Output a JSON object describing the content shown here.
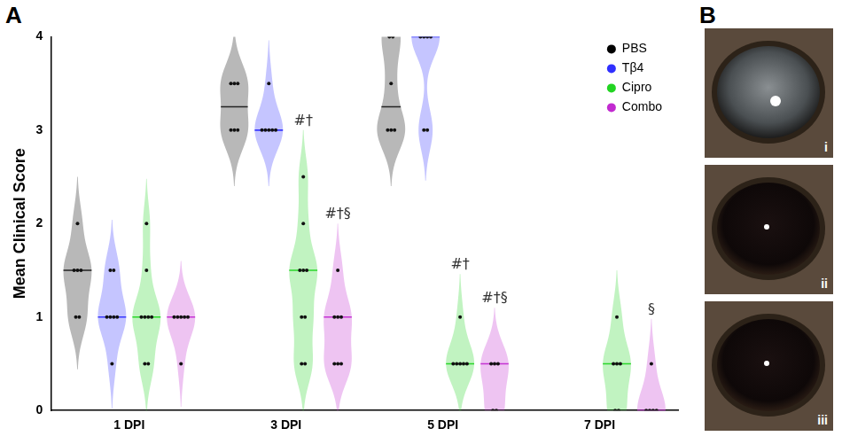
{
  "chart_data": {
    "type": "violin",
    "panel_label": "A",
    "y_label": "Mean Clinical Score",
    "categories": [
      "1 DPI",
      "3 DPI",
      "5 DPI",
      "7 DPI"
    ],
    "series": [
      {
        "name": "PBS",
        "color": "#000000",
        "values": [
          [
            2,
            1.5,
            1.5,
            1.5,
            1,
            1
          ],
          [
            3.5,
            3.5,
            3.5,
            3,
            3,
            3
          ],
          [
            4,
            4,
            3.5,
            3,
            3,
            3
          ],
          null
        ]
      },
      {
        "name": "Tβ4",
        "color": "#3030ff",
        "values": [
          [
            1.5,
            1.5,
            1,
            1,
            1,
            1,
            0.5
          ],
          [
            3.5,
            3,
            3,
            3,
            3,
            3
          ],
          [
            4,
            4,
            4,
            4,
            3,
            3
          ],
          null
        ]
      },
      {
        "name": "Cipro",
        "color": "#22d422",
        "values": [
          [
            2,
            1.5,
            1,
            1,
            1,
            1,
            0.5,
            0.5
          ],
          [
            2.5,
            2,
            1.5,
            1.5,
            1.5,
            1,
            1,
            0.5,
            0.5
          ],
          [
            1,
            0.5,
            0.5,
            0.5,
            0.5,
            0.5
          ],
          [
            1,
            0.5,
            0.5,
            0.5,
            0,
            0
          ]
        ]
      },
      {
        "name": "Combo",
        "color": "#c22ad0",
        "values": [
          [
            1,
            1,
            1,
            1,
            1,
            0.5
          ],
          [
            1.5,
            1,
            1,
            1,
            0.5,
            0.5,
            0.5
          ],
          [
            0.5,
            0.5,
            0.5,
            0,
            0
          ],
          [
            0.5,
            0,
            0,
            0,
            0
          ]
        ]
      }
    ],
    "annotations": [
      {
        "category": "3 DPI",
        "series": "Cipro",
        "text": "#†"
      },
      {
        "category": "3 DPI",
        "series": "Combo",
        "text": "#†§"
      },
      {
        "category": "5 DPI",
        "series": "Cipro",
        "text": "#†"
      },
      {
        "category": "5 DPI",
        "series": "Combo",
        "text": "#†§"
      },
      {
        "category": "7 DPI",
        "series": "Combo",
        "text": "§"
      }
    ],
    "ylim": [
      0,
      4
    ],
    "yticks": [
      0,
      1,
      2,
      3,
      4
    ],
    "grid": false,
    "legend": "upper right"
  },
  "photos": {
    "panel_label": "B",
    "labels": [
      "i",
      "ii",
      "iii"
    ]
  }
}
